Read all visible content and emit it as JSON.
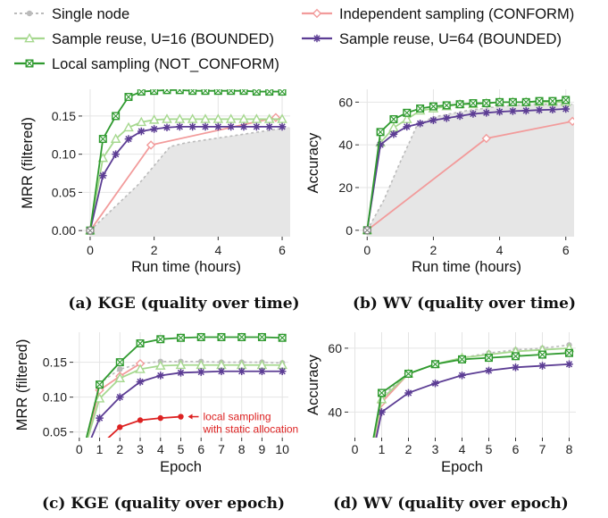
{
  "legend": [
    {
      "key": "single",
      "label": "Single node",
      "color": "#bbbbbb",
      "marker": "dot",
      "dash": true
    },
    {
      "key": "indep",
      "label": "Independent sampling (CONFORM)",
      "color": "#f29b9b",
      "marker": "diamond"
    },
    {
      "key": "reuse16",
      "label": "Sample reuse, U=16 (BOUNDED)",
      "color": "#a6d88f",
      "marker": "triangle"
    },
    {
      "key": "reuse64",
      "label": "Sample reuse, U=64 (BOUNDED)",
      "color": "#5c3d94",
      "marker": "asterisk"
    },
    {
      "key": "local",
      "label": "Local sampling (NOT_CONFORM)",
      "color": "#2f9a2f",
      "marker": "square-x"
    }
  ],
  "chart_data": [
    {
      "type": "line",
      "caption": "(a) KGE (quality over time)",
      "xlabel": "Run time (hours)",
      "ylabel": "MRR (filtered)",
      "xlim": [
        -0.25,
        6.25
      ],
      "ylim": [
        -0.008,
        0.185
      ],
      "xticks": [
        0,
        2,
        4,
        6
      ],
      "yticks": [
        0.0,
        0.05,
        0.1,
        0.15
      ],
      "ytick_labels": [
        "0.00",
        "0.05",
        "0.10",
        "0.15"
      ],
      "grid": true,
      "shaded_series": "single",
      "series": [
        {
          "key": "single",
          "x": [
            0,
            0.5,
            1.0,
            1.5,
            2.0,
            2.5,
            3.0,
            6.2
          ],
          "y": [
            0,
            0.02,
            0.04,
            0.06,
            0.085,
            0.11,
            0.115,
            0.135
          ],
          "markers": false
        },
        {
          "key": "indep",
          "x": [
            0,
            1.9,
            5.8
          ],
          "y": [
            0,
            0.112,
            0.148
          ],
          "markers": true
        },
        {
          "key": "reuse16",
          "x": [
            0,
            0.4,
            0.8,
            1.2,
            1.6,
            2.0,
            2.4,
            2.8,
            3.2,
            3.6,
            4.0,
            4.4,
            4.8,
            5.2,
            5.6,
            6.0
          ],
          "y": [
            0,
            0.095,
            0.12,
            0.135,
            0.142,
            0.145,
            0.146,
            0.146,
            0.146,
            0.146,
            0.146,
            0.146,
            0.146,
            0.146,
            0.146,
            0.146
          ],
          "markers": true
        },
        {
          "key": "reuse64",
          "x": [
            0,
            0.4,
            0.8,
            1.2,
            1.6,
            2.0,
            2.4,
            2.8,
            3.2,
            3.6,
            4.0,
            4.4,
            4.8,
            5.2,
            5.6,
            6.0
          ],
          "y": [
            0,
            0.072,
            0.1,
            0.12,
            0.13,
            0.133,
            0.135,
            0.136,
            0.136,
            0.136,
            0.136,
            0.136,
            0.136,
            0.136,
            0.136,
            0.136
          ],
          "markers": true
        },
        {
          "key": "local",
          "x": [
            0,
            0.4,
            0.8,
            1.2,
            1.6,
            2.0,
            2.4,
            2.8,
            3.2,
            3.6,
            4.0,
            4.4,
            4.8,
            5.2,
            5.6,
            6.0
          ],
          "y": [
            0,
            0.12,
            0.15,
            0.175,
            0.182,
            0.183,
            0.184,
            0.184,
            0.183,
            0.183,
            0.183,
            0.183,
            0.183,
            0.182,
            0.182,
            0.182
          ],
          "markers": true
        }
      ]
    },
    {
      "type": "line",
      "caption": "(b) WV (quality over time)",
      "xlabel": "Run time (hours)",
      "ylabel": "Accuracy",
      "xlim": [
        -0.25,
        6.25
      ],
      "ylim": [
        -3,
        66
      ],
      "xticks": [
        0,
        2,
        4,
        6
      ],
      "yticks": [
        0,
        20,
        40,
        60
      ],
      "ytick_labels": [
        "0",
        "20",
        "40",
        "60"
      ],
      "grid": true,
      "shaded_series": "single",
      "series": [
        {
          "key": "single",
          "x": [
            0,
            0.5,
            1.0,
            1.3,
            1.5,
            2.0,
            3.0,
            4.0,
            5.0,
            6.2
          ],
          "y": [
            0,
            14,
            32,
            42,
            49,
            53,
            56,
            58,
            59,
            59
          ],
          "markers": false
        },
        {
          "key": "indep",
          "x": [
            0,
            3.6,
            6.2
          ],
          "y": [
            0,
            43,
            51
          ],
          "markers": true
        },
        {
          "key": "reuse16",
          "x": [
            0,
            0.4,
            0.8,
            1.2,
            1.6,
            2.0,
            2.4,
            2.8,
            3.2,
            3.6,
            4.0,
            4.4,
            4.8,
            5.2,
            5.6,
            6.0
          ],
          "y": [
            0,
            41,
            48,
            52,
            56,
            57,
            58,
            59,
            59,
            59.5,
            60,
            60,
            60,
            60,
            60,
            60
          ],
          "markers": true
        },
        {
          "key": "reuse64",
          "x": [
            0,
            0.4,
            0.8,
            1.2,
            1.6,
            2.0,
            2.4,
            2.8,
            3.2,
            3.6,
            4.0,
            4.4,
            4.8,
            5.2,
            5.6,
            6.0
          ],
          "y": [
            0,
            40,
            45,
            48.5,
            50,
            51.5,
            52.5,
            53.5,
            54.5,
            55,
            55.5,
            55.8,
            56,
            56.3,
            56.5,
            56.8
          ],
          "markers": true
        },
        {
          "key": "local",
          "x": [
            0,
            0.4,
            0.8,
            1.2,
            1.6,
            2.0,
            2.4,
            2.8,
            3.2,
            3.6,
            4.0,
            4.4,
            4.8,
            5.2,
            5.6,
            6.0
          ],
          "y": [
            0,
            46,
            52,
            55,
            57,
            58,
            58.5,
            59,
            59.5,
            59.5,
            60,
            60,
            60,
            60.5,
            60.5,
            61
          ],
          "markers": true
        }
      ]
    },
    {
      "type": "line",
      "caption": "(c) KGE (quality over epoch)",
      "xlabel": "Epoch",
      "ylabel": "MRR (filtered)",
      "xlim": [
        -0.3,
        10.3
      ],
      "ylim": [
        0.042,
        0.193
      ],
      "xticks": [
        0,
        1,
        2,
        3,
        4,
        5,
        6,
        7,
        8,
        9,
        10
      ],
      "yticks": [
        0.05,
        0.1,
        0.15
      ],
      "ytick_labels": [
        "0.05",
        "0.10",
        "0.15"
      ],
      "grid": true,
      "shaded_series": null,
      "annotation": {
        "lines": [
          "local sampling",
          "with static allocation"
        ],
        "color": "#dd2222",
        "arrow_to_x": 5,
        "arrow_to_y": 0.072
      },
      "series": [
        {
          "key": "single",
          "x": [
            0,
            1,
            2,
            3,
            4,
            5,
            6,
            7,
            8,
            9,
            10
          ],
          "y": [
            0.0,
            0.12,
            0.14,
            0.148,
            0.151,
            0.151,
            0.151,
            0.15,
            0.15,
            0.15,
            0.149
          ],
          "markers": true
        },
        {
          "key": "indep",
          "x": [
            0,
            1,
            2,
            3
          ],
          "y": [
            0.0,
            0.11,
            0.13,
            0.148
          ],
          "markers": true
        },
        {
          "key": "reuse16",
          "x": [
            0,
            1,
            2,
            3,
            4,
            5,
            6,
            7,
            8,
            9,
            10
          ],
          "y": [
            0.0,
            0.098,
            0.127,
            0.14,
            0.145,
            0.146,
            0.146,
            0.146,
            0.146,
            0.146,
            0.146
          ],
          "markers": true
        },
        {
          "key": "reuse64",
          "x": [
            0,
            1,
            2,
            3,
            4,
            5,
            6,
            7,
            8,
            9,
            10
          ],
          "y": [
            0.0,
            0.07,
            0.1,
            0.122,
            0.131,
            0.135,
            0.136,
            0.137,
            0.137,
            0.137,
            0.137
          ],
          "markers": true
        },
        {
          "key": "local",
          "x": [
            0,
            1,
            2,
            3,
            4,
            5,
            6,
            7,
            8,
            9,
            10
          ],
          "y": [
            0.0,
            0.118,
            0.15,
            0.177,
            0.183,
            0.185,
            0.186,
            0.186,
            0.186,
            0.186,
            0.185
          ],
          "markers": true
        },
        {
          "key": "static",
          "x": [
            0,
            1,
            2,
            3,
            4,
            5
          ],
          "y": [
            0.0,
            0.03,
            0.057,
            0.067,
            0.07,
            0.072
          ],
          "markers": true,
          "color": "#dd2222",
          "marker": "dot"
        }
      ]
    },
    {
      "type": "line",
      "caption": "(d) WV (quality over epoch)",
      "xlabel": "Epoch",
      "ylabel": "Accuracy",
      "xlim": [
        -0.25,
        8.25
      ],
      "ylim": [
        32,
        65
      ],
      "xticks": [
        0,
        1,
        2,
        3,
        4,
        5,
        6,
        7,
        8
      ],
      "yticks": [
        40,
        60
      ],
      "ytick_labels": [
        "40",
        "60"
      ],
      "grid": true,
      "shaded_series": null,
      "series": [
        {
          "key": "single",
          "x": [
            0,
            1,
            2,
            3,
            4,
            5,
            6,
            7,
            8
          ],
          "y": [
            0,
            45,
            52,
            55,
            57,
            58.5,
            59.5,
            60,
            61
          ],
          "markers": true
        },
        {
          "key": "indep",
          "x": [
            0,
            1,
            2
          ],
          "y": [
            0,
            43,
            52
          ],
          "markers": true
        },
        {
          "key": "reuse16",
          "x": [
            0,
            1,
            2,
            3,
            4,
            5,
            6,
            7,
            8
          ],
          "y": [
            0,
            44,
            52,
            55,
            57,
            58,
            59,
            59.5,
            60
          ],
          "markers": true
        },
        {
          "key": "reuse64",
          "x": [
            0,
            1,
            2,
            3,
            4,
            5,
            6,
            7,
            8
          ],
          "y": [
            0,
            40,
            46,
            49,
            51.5,
            53,
            54,
            54.5,
            55
          ],
          "markers": true
        },
        {
          "key": "local",
          "x": [
            0,
            1,
            2,
            3,
            4,
            5,
            6,
            7,
            8
          ],
          "y": [
            0,
            46,
            52,
            55,
            56.5,
            57,
            57.5,
            58,
            58.5
          ],
          "markers": true
        }
      ]
    }
  ]
}
